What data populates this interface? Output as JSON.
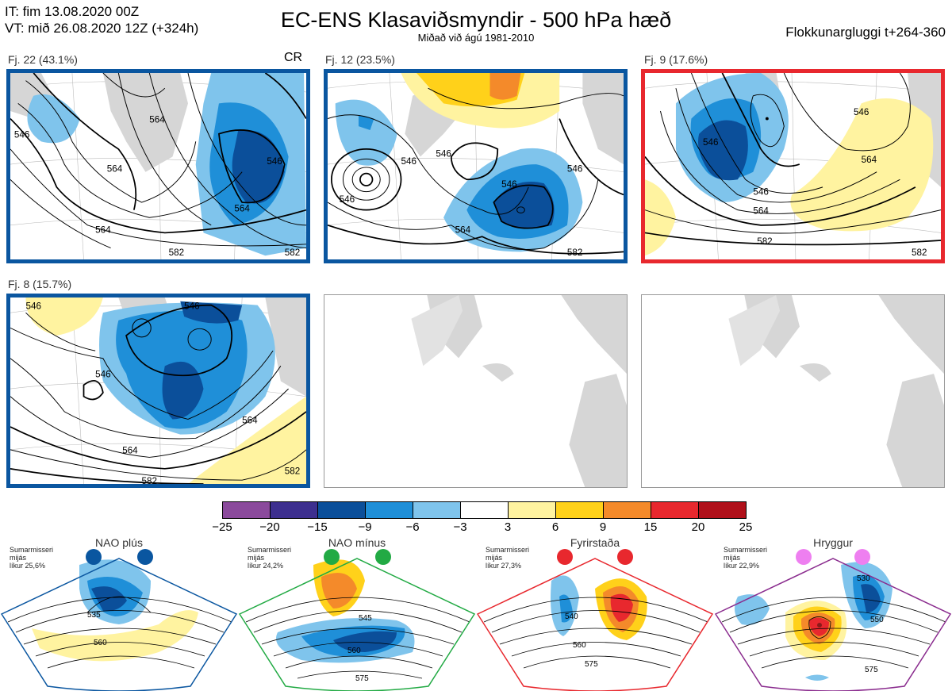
{
  "header": {
    "init_time": "IT: fim 13.08.2020 00Z",
    "valid_time": "VT: mið 26.08.2020 12Z  (+324h)",
    "title": "EC-ENS Klasaviðsmyndir - 500 hPa hæð",
    "subtitle": "Miðað við ágú 1981-2010",
    "window": "Flokkunargluggi t+264-360"
  },
  "panels": [
    {
      "label": "Fj. 22 (43.1%)",
      "tag": "CR",
      "frame": "#0a56a0",
      "contours": [
        "546",
        "564",
        "564",
        "564",
        "546",
        "564",
        "582",
        "582"
      ]
    },
    {
      "label": "Fj. 12 (23.5%)",
      "tag": "",
      "frame": "#0a56a0",
      "contours": [
        "546",
        "546",
        "546",
        "546",
        "546",
        "564",
        "582"
      ]
    },
    {
      "label": "Fj. 9 (17.6%)",
      "tag": "",
      "frame": "#e8282e",
      "contours": [
        "546",
        "546",
        "546",
        "564",
        "564",
        "582",
        "582"
      ]
    },
    {
      "label": "Fj. 8 (15.7%)",
      "tag": "",
      "frame": "#0a56a0",
      "contours": [
        "546",
        "546",
        "546",
        "564",
        "564",
        "582",
        "582"
      ]
    }
  ],
  "colorbar": {
    "colors": [
      "#8b4a9c",
      "#3d2f8f",
      "#0b4f9a",
      "#1f8fd8",
      "#7fc4ec",
      "#ffffff",
      "#fff3a0",
      "#ffd11a",
      "#f48a2a",
      "#e8282e",
      "#b0101a"
    ],
    "ticks": [
      "−25",
      "−20",
      "−15",
      "−9",
      "−6",
      "−3",
      "3",
      "6",
      "9",
      "15",
      "20",
      "25"
    ]
  },
  "regimes": [
    {
      "title": "NAO plús",
      "season": "Sumarmisseri",
      "kind": "mijás",
      "likelihood": "líkur 25,6%",
      "color": "#0a56a0",
      "labels": [
        "535",
        "560"
      ]
    },
    {
      "title": "NAO mínus",
      "season": "Sumarmisseri",
      "kind": "mijás",
      "likelihood": "líkur 24,2%",
      "color": "#22aa44",
      "labels": [
        "545",
        "560",
        "575"
      ]
    },
    {
      "title": "Fyrirstaða",
      "season": "Sumarmisseri",
      "kind": "mijás",
      "likelihood": "líkur 27,3%",
      "color": "#e8282e",
      "labels": [
        "540",
        "560",
        "575"
      ]
    },
    {
      "title": "Hryggur",
      "season": "Sumarmisseri",
      "kind": "mijás",
      "likelihood": "líkur 22,9%",
      "color": "#8a2c8e",
      "labels": [
        "530",
        "550",
        "575"
      ]
    }
  ]
}
